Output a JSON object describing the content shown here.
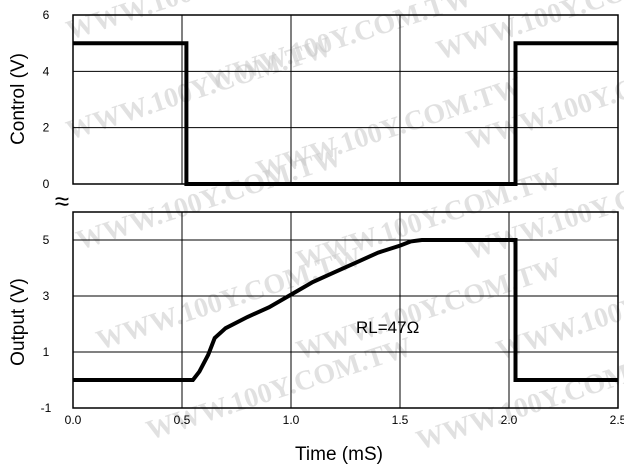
{
  "chart_data": [
    {
      "type": "line",
      "panel": "control",
      "ylabel": "Control (V)",
      "ylim": [
        0,
        6
      ],
      "yticks": [
        0,
        2,
        4,
        6
      ],
      "xlim": [
        0.0,
        2.5
      ],
      "grid": true,
      "series": [
        {
          "x": [
            0.0,
            0.52,
            0.52,
            2.03,
            2.03,
            2.5
          ],
          "y": [
            5,
            5,
            0,
            0,
            5,
            5
          ]
        }
      ]
    },
    {
      "type": "line",
      "panel": "output",
      "ylabel": "Output (V)",
      "xlabel": "Time (mS)",
      "ylim": [
        -1,
        6
      ],
      "yticks": [
        -1,
        1,
        3,
        5
      ],
      "xlim": [
        0.0,
        2.5
      ],
      "xticks": [
        "0.0",
        "0.5",
        "1.0",
        "1.5",
        "2.0",
        "2.5"
      ],
      "grid": true,
      "annotation": "RL=47Ω",
      "series": [
        {
          "x": [
            0.0,
            0.55,
            0.58,
            0.62,
            0.65,
            0.7,
            0.8,
            0.9,
            1.0,
            1.1,
            1.2,
            1.3,
            1.4,
            1.5,
            1.55,
            1.6,
            1.7,
            1.8,
            1.9,
            2.03,
            2.03,
            2.5
          ],
          "y": [
            0.0,
            0.0,
            0.3,
            0.9,
            1.5,
            1.85,
            2.25,
            2.6,
            3.05,
            3.5,
            3.85,
            4.2,
            4.55,
            4.8,
            4.95,
            5.0,
            5.0,
            5.0,
            5.0,
            5.0,
            0.0,
            0.0
          ]
        }
      ]
    }
  ],
  "watermark": "WWW.100Y.COM.TW",
  "axis_break_symbol": "≈"
}
